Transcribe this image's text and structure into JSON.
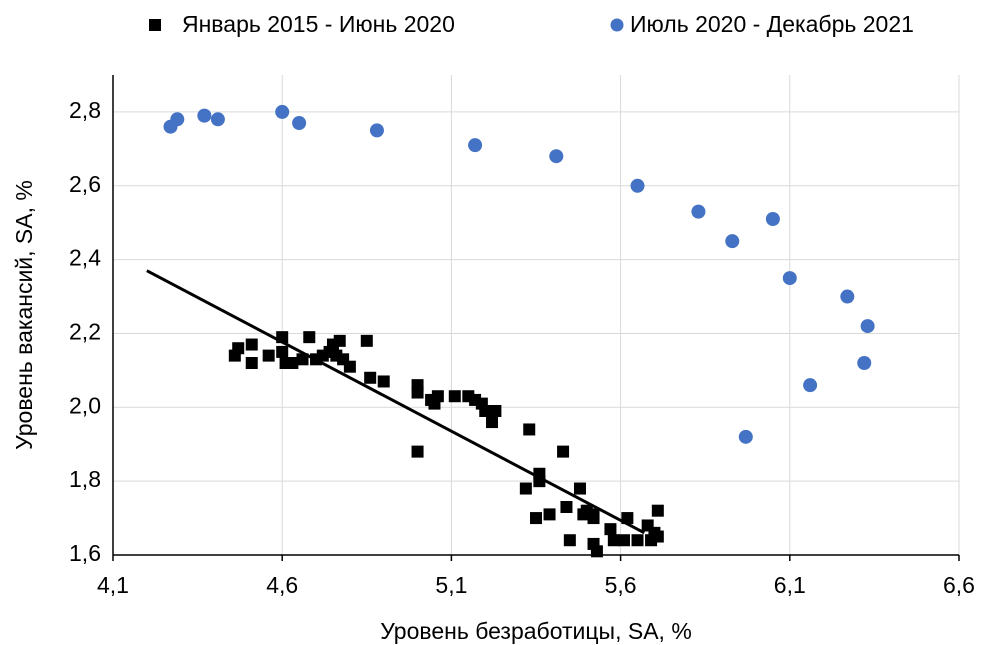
{
  "chart_data": {
    "type": "scatter",
    "x_label": "Уровень безработицы, SA, %",
    "y_label": "Уровень вакансий,  SA, %",
    "xlim": [
      4.1,
      6.6
    ],
    "xticks": [
      {
        "value": 4.1,
        "label": "4,1"
      },
      {
        "value": 4.6,
        "label": "4,6"
      },
      {
        "value": 5.1,
        "label": "5,1"
      },
      {
        "value": 5.6,
        "label": "5,6"
      },
      {
        "value": 6.1,
        "label": "6,1"
      },
      {
        "value": 6.6,
        "label": "6,6"
      }
    ],
    "ylim": [
      1.6,
      2.9
    ],
    "yticks": [
      {
        "value": 1.6,
        "label": "1,6"
      },
      {
        "value": 1.8,
        "label": "1,8"
      },
      {
        "value": 2.0,
        "label": "2,0"
      },
      {
        "value": 2.2,
        "label": "2,2"
      },
      {
        "value": 2.4,
        "label": "2,4"
      },
      {
        "value": 2.6,
        "label": "2,6"
      },
      {
        "value": 2.8,
        "label": "2,8"
      }
    ],
    "grid": true,
    "legend": "top",
    "series": [
      {
        "name": "Январь 2015 - Июнь 2020",
        "color": "#000000",
        "marker": "square",
        "x": [
          4.46,
          4.47,
          4.51,
          4.51,
          4.56,
          4.6,
          4.6,
          4.61,
          4.63,
          4.66,
          4.68,
          4.7,
          4.72,
          4.74,
          4.75,
          4.76,
          4.77,
          4.78,
          4.8,
          4.85,
          4.86,
          4.9,
          5.0,
          5.0,
          5.0,
          5.04,
          5.05,
          5.06,
          5.11,
          5.15,
          5.17,
          5.19,
          5.2,
          5.22,
          5.23,
          5.32,
          5.33,
          5.35,
          5.36,
          5.36,
          5.39,
          5.43,
          5.44,
          5.45,
          5.48,
          5.49,
          5.5,
          5.52,
          5.52,
          5.52,
          5.53,
          5.57,
          5.58,
          5.61,
          5.62,
          5.65,
          5.68,
          5.69,
          5.7,
          5.71,
          5.71
        ],
        "values": [
          2.14,
          2.16,
          2.17,
          2.12,
          2.14,
          2.19,
          2.15,
          2.12,
          2.12,
          2.13,
          2.19,
          2.13,
          2.14,
          2.15,
          2.17,
          2.14,
          2.18,
          2.13,
          2.11,
          2.18,
          2.08,
          2.07,
          1.88,
          2.06,
          2.04,
          2.02,
          2.01,
          2.03,
          2.03,
          2.03,
          2.02,
          2.01,
          1.99,
          1.96,
          1.99,
          1.78,
          1.94,
          1.7,
          1.82,
          1.8,
          1.71,
          1.88,
          1.73,
          1.64,
          1.78,
          1.71,
          1.72,
          1.7,
          1.71,
          1.63,
          1.61,
          1.67,
          1.64,
          1.64,
          1.7,
          1.64,
          1.68,
          1.64,
          1.66,
          1.72,
          1.65
        ]
      },
      {
        "name": "Июль 2020 - Декабрь 2021",
        "color": "#4472c4",
        "marker": "circle",
        "x": [
          4.27,
          4.29,
          4.37,
          4.41,
          4.6,
          4.65,
          4.88,
          5.17,
          5.41,
          5.65,
          5.83,
          5.93,
          6.05,
          6.1,
          6.27,
          6.33,
          6.32,
          6.16,
          5.97
        ],
        "values": [
          2.76,
          2.78,
          2.79,
          2.78,
          2.8,
          2.77,
          2.75,
          2.71,
          2.68,
          2.6,
          2.53,
          2.45,
          2.51,
          2.35,
          2.3,
          2.22,
          2.12,
          2.06,
          1.92
        ]
      }
    ],
    "trendline": {
      "color": "#000000",
      "x": [
        4.2,
        5.67
      ],
      "values": [
        2.37,
        1.66
      ]
    }
  }
}
